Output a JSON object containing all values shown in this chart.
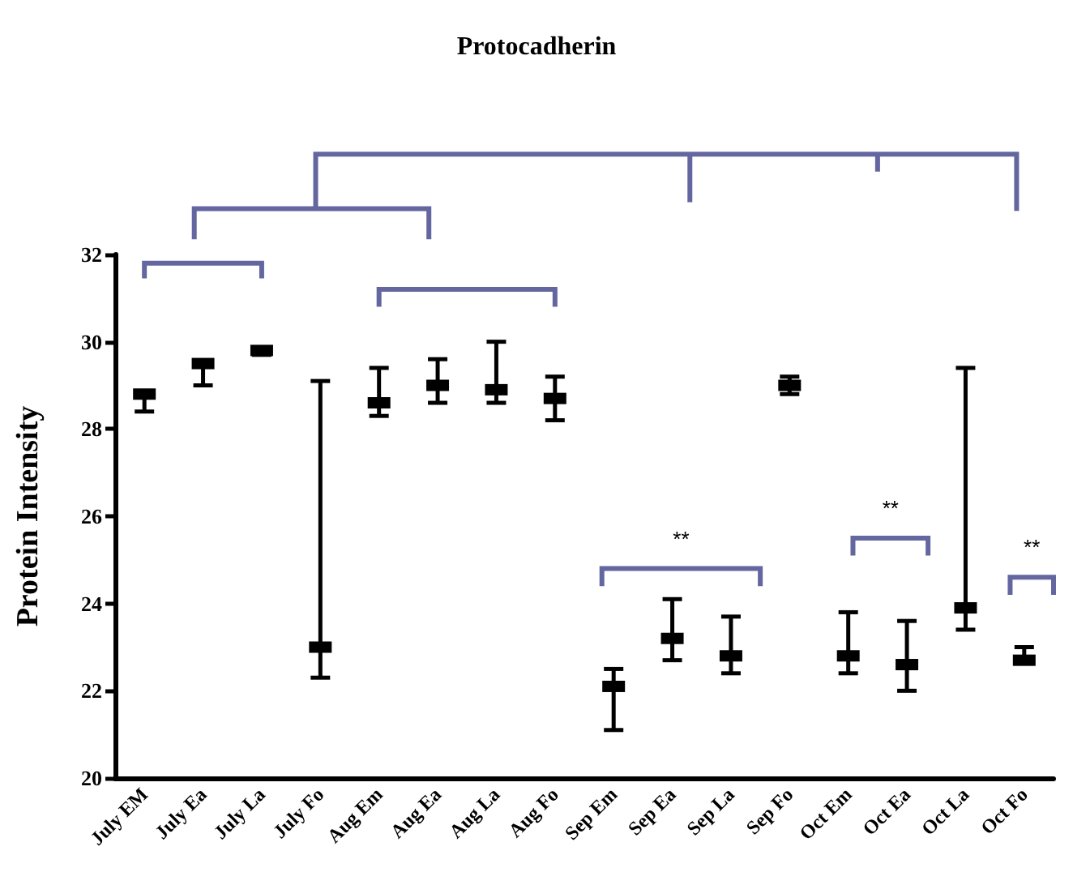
{
  "chart_data": {
    "type": "scatter",
    "title": "Protocadherin",
    "ylabel": "Protein Intensity",
    "categories": [
      "July EM",
      "July Ea",
      "July La",
      "July Fo",
      "Aug Em",
      "Aug Ea",
      "Aug La",
      "Aug Fo",
      "Sep Em",
      "Sep Ea",
      "Sep La",
      "Sep Fo",
      "Oct Em",
      "Oct Ea",
      "Oct La",
      "Oct Fo"
    ],
    "color": "#000000",
    "values": [
      28.8,
      29.5,
      29.8,
      23.0,
      28.6,
      29.0,
      28.9,
      28.7,
      22.1,
      23.2,
      22.8,
      29.0,
      22.8,
      22.6,
      23.9,
      22.7
    ],
    "errors": [
      [
        28.4,
        28.8
      ],
      [
        29.0,
        29.5
      ],
      [
        29.7,
        29.8
      ],
      [
        22.3,
        29.1
      ],
      [
        28.3,
        29.4
      ],
      [
        28.6,
        29.6
      ],
      [
        28.6,
        30.0
      ],
      [
        28.2,
        29.2
      ],
      [
        21.1,
        22.5
      ],
      [
        22.7,
        24.1
      ],
      [
        22.4,
        23.7
      ],
      [
        28.8,
        29.2
      ],
      [
        22.4,
        23.8
      ],
      [
        22.0,
        23.6
      ],
      [
        23.4,
        29.4
      ],
      [
        22.7,
        23.0
      ]
    ],
    "ylim": [
      20,
      32
    ],
    "yticks": [
      20,
      22,
      24,
      26,
      28,
      30,
      32
    ],
    "annotations": [
      "**",
      "**",
      "**"
    ]
  }
}
